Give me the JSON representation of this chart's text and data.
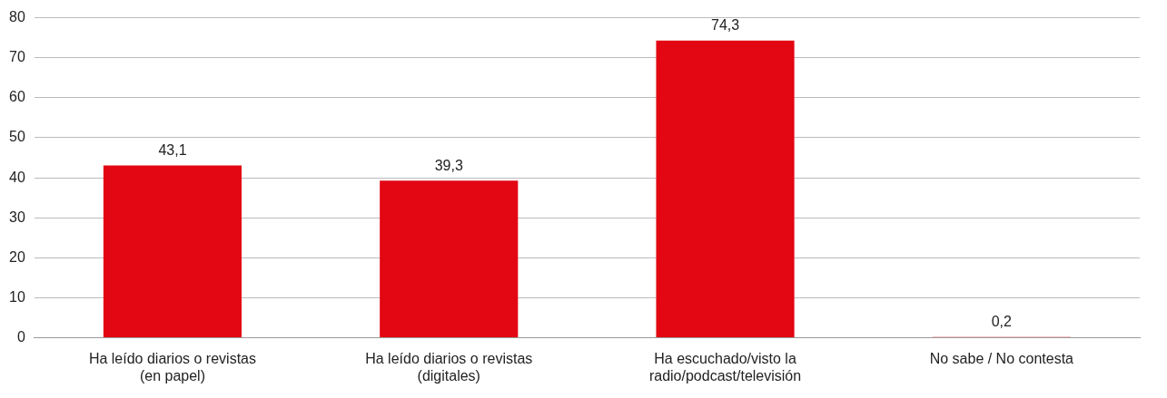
{
  "chart_data": {
    "type": "bar",
    "categories": [
      "Ha leído diarios o revistas (en papel)",
      "Ha leído diarios o revistas (digitales)",
      "Ha escuchado/visto la radio/podcast/televisión",
      "No sabe / No contesta"
    ],
    "values": [
      43.1,
      39.3,
      74.3,
      0.2
    ],
    "value_labels": [
      "43,1",
      "39,3",
      "74,3",
      "0,2"
    ],
    "color": "#e30613",
    "ylim": [
      0,
      80
    ],
    "yticks": [
      0,
      10,
      20,
      30,
      40,
      50,
      60,
      70,
      80
    ],
    "grid": "y",
    "legend": false
  }
}
